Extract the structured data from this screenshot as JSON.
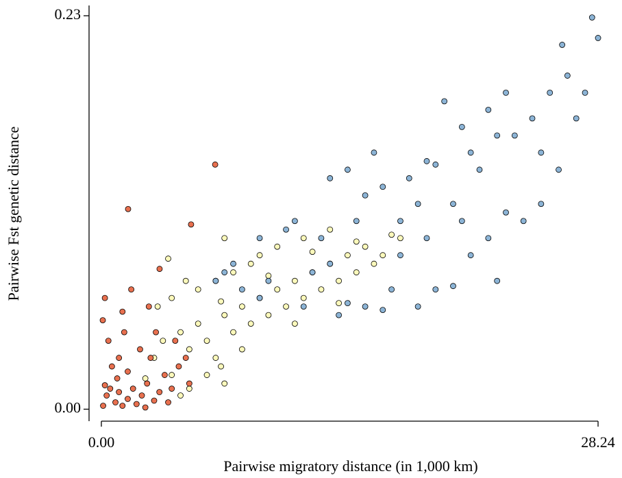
{
  "chart_data": {
    "type": "scatter",
    "x_label": "Pairwise migratory distance (in 1,000 km)",
    "y_label": "Pairwise Fst genetic distance",
    "xlim": [
      -0.7,
      28.9
    ],
    "ylim": [
      -0.007,
      0.236
    ],
    "xticks": [
      {
        "value": 0,
        "label": "0.00"
      },
      28.24
    ],
    "yticks": [
      {
        "value": 0,
        "label": "0.00"
      },
      0.23
    ],
    "series": [
      {
        "color": "#fcf9bb",
        "x": [
          3.0,
          3.5,
          4.0,
          4.5,
          5.0,
          5.5,
          6.0,
          6.5,
          7.0,
          7.5,
          8.0,
          8.5,
          9.0,
          9.5,
          10.0,
          10.5,
          11.0,
          11.5,
          12.0,
          12.5,
          13.0,
          13.5,
          14.0,
          14.5,
          15.0,
          16.0,
          17.0,
          3.2,
          4.0,
          5.5,
          6.5,
          7.5,
          9.0,
          10.0,
          11.5,
          13.0,
          6.0,
          5.0,
          4.5,
          6.8,
          7.0,
          8.0,
          2.5,
          3.8,
          4.8,
          8.5,
          9.5,
          12.0,
          14.5,
          16.5,
          7.0,
          6.8,
          11.0,
          13.5,
          15.5
        ],
        "values": [
          0.03,
          0.04,
          0.02,
          0.045,
          0.035,
          0.05,
          0.04,
          0.03,
          0.055,
          0.045,
          0.06,
          0.05,
          0.065,
          0.055,
          0.07,
          0.06,
          0.075,
          0.065,
          0.08,
          0.07,
          0.085,
          0.075,
          0.09,
          0.08,
          0.095,
          0.09,
          0.1,
          0.06,
          0.065,
          0.07,
          0.075,
          0.08,
          0.09,
          0.095,
          0.1,
          0.105,
          0.02,
          0.012,
          0.008,
          0.025,
          0.015,
          0.035,
          0.018,
          0.088,
          0.075,
          0.085,
          0.078,
          0.092,
          0.098,
          0.102,
          0.1,
          0.063,
          0.05,
          0.062,
          0.085
        ]
      },
      {
        "color": "#e8704f",
        "x": [
          0.1,
          0.3,
          0.5,
          0.2,
          0.8,
          1.0,
          1.2,
          1.5,
          1.8,
          2.0,
          2.3,
          2.6,
          3.0,
          3.3,
          3.6,
          4.0,
          4.4,
          0.6,
          1.0,
          1.5,
          2.2,
          2.8,
          0.4,
          1.3,
          0.08,
          1.2,
          2.7,
          3.1,
          4.2,
          3.31,
          1.52,
          5.1,
          6.47,
          0.9,
          2.5,
          3.8,
          4.8,
          5.0,
          0.2,
          1.7
        ],
        "values": [
          0.002,
          0.008,
          0.012,
          0.014,
          0.004,
          0.01,
          0.002,
          0.006,
          0.012,
          0.003,
          0.008,
          0.015,
          0.005,
          0.01,
          0.02,
          0.012,
          0.025,
          0.025,
          0.03,
          0.022,
          0.035,
          0.03,
          0.04,
          0.045,
          0.052,
          0.057,
          0.06,
          0.045,
          0.04,
          0.082,
          0.117,
          0.108,
          0.143,
          0.018,
          0.001,
          0.004,
          0.03,
          0.015,
          0.065,
          0.07
        ]
      },
      {
        "color": "#8cb4d6",
        "x": [
          6.5,
          7.0,
          7.5,
          8.0,
          9.0,
          9.5,
          11.5,
          12.0,
          13.0,
          13.5,
          14.0,
          15.0,
          16.0,
          16.5,
          17.0,
          18.0,
          18.5,
          19.0,
          20.0,
          20.5,
          21.0,
          22.0,
          22.5,
          23.0,
          24.0,
          25.0,
          26.0,
          27.0,
          28.24,
          27.9,
          26.2,
          25.5,
          25.0,
          24.5,
          23.5,
          22.0,
          21.0,
          20.5,
          19.0,
          18.5,
          18.0,
          17.5,
          16.0,
          15.0,
          14.5,
          13.0,
          12.5,
          11.0,
          10.5,
          9.0,
          21.5,
          23.0,
          26.5,
          27.5,
          20.0,
          17.0,
          15.5,
          14.0,
          19.5,
          22.5
        ],
        "values": [
          0.075,
          0.08,
          0.085,
          0.07,
          0.065,
          0.075,
          0.06,
          0.08,
          0.085,
          0.055,
          0.062,
          0.06,
          0.058,
          0.07,
          0.09,
          0.06,
          0.1,
          0.07,
          0.072,
          0.11,
          0.09,
          0.1,
          0.075,
          0.115,
          0.11,
          0.12,
          0.14,
          0.17,
          0.217,
          0.229,
          0.213,
          0.185,
          0.15,
          0.17,
          0.16,
          0.175,
          0.15,
          0.165,
          0.143,
          0.145,
          0.12,
          0.135,
          0.13,
          0.125,
          0.11,
          0.135,
          0.1,
          0.11,
          0.105,
          0.1,
          0.14,
          0.185,
          0.195,
          0.185,
          0.12,
          0.11,
          0.15,
          0.14,
          0.18,
          0.16
        ]
      }
    ]
  }
}
